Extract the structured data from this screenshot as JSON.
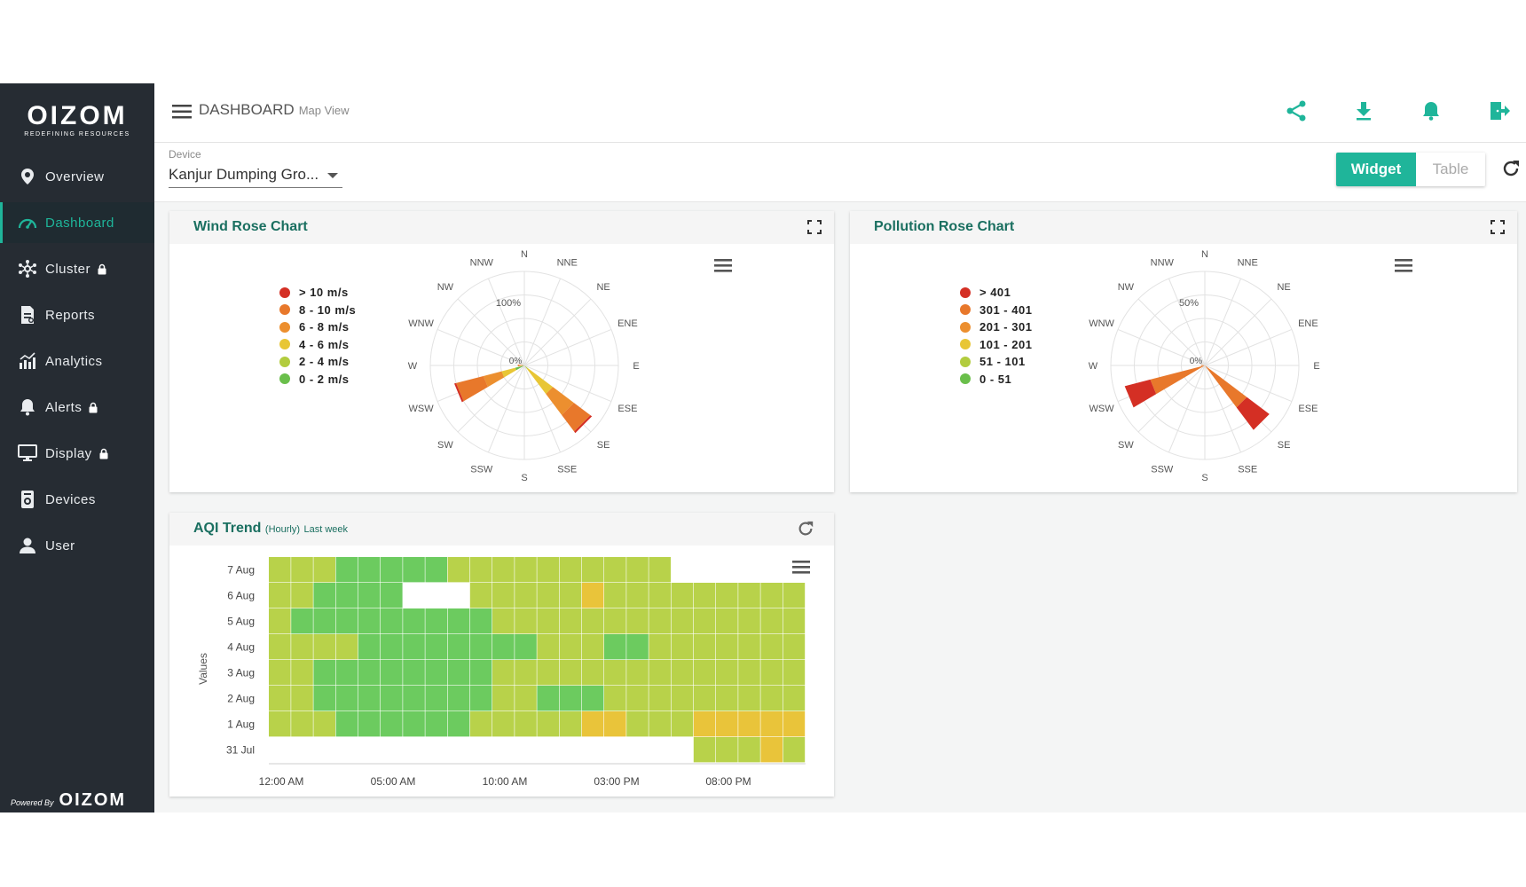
{
  "brand": {
    "name": "OIZOM",
    "tagline": "REDEFINING RESOURCES",
    "powered_by": "Powered By",
    "powered_name": "OIZOM"
  },
  "sidebar": {
    "items": [
      {
        "label": "Overview",
        "icon": "map-pin-icon",
        "active": false,
        "locked": false
      },
      {
        "label": "Dashboard",
        "icon": "speedometer-icon",
        "active": true,
        "locked": false
      },
      {
        "label": "Cluster",
        "icon": "cluster-icon",
        "active": false,
        "locked": true
      },
      {
        "label": "Reports",
        "icon": "report-icon",
        "active": false,
        "locked": false
      },
      {
        "label": "Analytics",
        "icon": "analytics-icon",
        "active": false,
        "locked": false
      },
      {
        "label": "Alerts",
        "icon": "bell-icon",
        "active": false,
        "locked": true
      },
      {
        "label": "Display",
        "icon": "monitor-icon",
        "active": false,
        "locked": true
      },
      {
        "label": "Devices",
        "icon": "device-icon",
        "active": false,
        "locked": false
      },
      {
        "label": "User",
        "icon": "user-icon",
        "active": false,
        "locked": false
      }
    ]
  },
  "header": {
    "title": "DASHBOARD",
    "subtitle": "Map View",
    "icons": [
      "share-icon",
      "download-icon",
      "bell-icon",
      "logout-icon"
    ]
  },
  "device": {
    "label": "Device",
    "value": "Kanjur Dumping Gro..."
  },
  "view_toggle": {
    "active": "Widget",
    "inactive": "Table"
  },
  "colors": {
    "accent": "#1fb59a",
    "sidebar": "#262c33",
    "title": "#1a6f60"
  },
  "wind_rose": {
    "title": "Wind Rose Chart",
    "directions": [
      "N",
      "NNE",
      "NE",
      "ENE",
      "E",
      "ESE",
      "SE",
      "SSE",
      "S",
      "SSW",
      "SW",
      "WSW",
      "W",
      "WNW",
      "NW",
      "NNW"
    ],
    "radial_labels": [
      "100%",
      "0%"
    ],
    "legend": [
      {
        "label": "> 10 m/s",
        "color": "#d42f24"
      },
      {
        "label": "8 - 10 m/s",
        "color": "#e8782b"
      },
      {
        "label": "6 - 8 m/s",
        "color": "#ec8f2f"
      },
      {
        "label": "4 - 6 m/s",
        "color": "#e8c635"
      },
      {
        "label": "2 - 4 m/s",
        "color": "#b2cc3e"
      },
      {
        "label": "0 - 2 m/s",
        "color": "#6abf4b"
      }
    ],
    "sectors": [
      {
        "direction": "WSW",
        "segments": [
          0.02,
          0.3,
          0.2,
          0.15,
          0.0,
          0.1
        ]
      },
      {
        "direction": "SE",
        "segments": [
          0.02,
          0.22,
          0.28,
          0.33,
          0.05,
          0.0
        ]
      },
      {
        "direction": "W",
        "segments": [
          0.0,
          0.02,
          0.04,
          0.01,
          0.0,
          0.0
        ]
      }
    ]
  },
  "pollution_rose": {
    "title": "Pollution Rose Chart",
    "directions": [
      "N",
      "NNE",
      "NE",
      "ENE",
      "E",
      "ESE",
      "SE",
      "SSE",
      "S",
      "SSW",
      "SW",
      "WSW",
      "W",
      "WNW",
      "NW",
      "NNW"
    ],
    "radial_labels": [
      "50%",
      "0%"
    ],
    "legend": [
      {
        "label": "> 401",
        "color": "#d42f24"
      },
      {
        "label": "301 - 401",
        "color": "#e8782b"
      },
      {
        "label": "201 - 301",
        "color": "#ec8f2f"
      },
      {
        "label": "101 - 201",
        "color": "#e8c635"
      },
      {
        "label": "51 - 101",
        "color": "#b2cc3e"
      },
      {
        "label": "0 - 51",
        "color": "#6abf4b"
      }
    ],
    "sectors": [
      {
        "direction": "WSW",
        "segments": [
          0.28,
          0.6,
          0.0,
          0.0,
          0.0,
          0.0
        ]
      },
      {
        "direction": "SE",
        "segments": [
          0.3,
          0.56,
          0.0,
          0.0,
          0.0,
          0.0
        ]
      },
      {
        "direction": "W",
        "segments": [
          0.0,
          0.02,
          0.02,
          0.0,
          0.0,
          0.0
        ]
      }
    ]
  },
  "chart_data": {
    "type": "heatmap",
    "title": "AQI Trend",
    "subtitle": "(Hourly)",
    "period": "Last week",
    "ylabel": "Values",
    "y_categories": [
      "7 Aug",
      "6 Aug",
      "5 Aug",
      "4 Aug",
      "3 Aug",
      "2 Aug",
      "1 Aug",
      "31 Jul"
    ],
    "x_tick_labels": [
      "12:00 AM",
      "05:00 AM",
      "10:00 AM",
      "03:00 PM",
      "08:00 PM"
    ],
    "legend_codes": {
      "G": "#6ccb5f",
      "Y": "#b8d24a",
      "O": "#e9c43a",
      "": "missing"
    },
    "rows": [
      [
        "Y",
        "Y",
        "Y",
        "G",
        "G",
        "G",
        "G",
        "G",
        "Y",
        "Y",
        "Y",
        "Y",
        "Y",
        "Y",
        "Y",
        "Y",
        "Y",
        "Y",
        "",
        "",
        "",
        "",
        "",
        ""
      ],
      [
        "Y",
        "Y",
        "G",
        "G",
        "G",
        "G",
        "",
        "",
        "",
        "Y",
        "Y",
        "Y",
        "Y",
        "Y",
        "O",
        "Y",
        "Y",
        "Y",
        "Y",
        "Y",
        "Y",
        "Y",
        "Y",
        "Y"
      ],
      [
        "Y",
        "G",
        "G",
        "G",
        "G",
        "G",
        "G",
        "G",
        "G",
        "G",
        "Y",
        "Y",
        "Y",
        "Y",
        "Y",
        "Y",
        "Y",
        "Y",
        "Y",
        "Y",
        "Y",
        "Y",
        "Y",
        "Y"
      ],
      [
        "Y",
        "Y",
        "Y",
        "Y",
        "G",
        "G",
        "G",
        "G",
        "G",
        "G",
        "G",
        "G",
        "Y",
        "Y",
        "Y",
        "G",
        "G",
        "Y",
        "Y",
        "Y",
        "Y",
        "Y",
        "Y",
        "Y"
      ],
      [
        "Y",
        "Y",
        "G",
        "G",
        "G",
        "G",
        "G",
        "G",
        "G",
        "G",
        "Y",
        "Y",
        "Y",
        "Y",
        "Y",
        "Y",
        "Y",
        "Y",
        "Y",
        "Y",
        "Y",
        "Y",
        "Y",
        "Y"
      ],
      [
        "Y",
        "Y",
        "G",
        "G",
        "G",
        "G",
        "G",
        "G",
        "G",
        "G",
        "Y",
        "Y",
        "G",
        "G",
        "G",
        "Y",
        "Y",
        "Y",
        "Y",
        "Y",
        "Y",
        "Y",
        "Y",
        "Y"
      ],
      [
        "Y",
        "Y",
        "Y",
        "G",
        "G",
        "G",
        "G",
        "G",
        "G",
        "Y",
        "Y",
        "Y",
        "Y",
        "Y",
        "O",
        "O",
        "Y",
        "Y",
        "Y",
        "O",
        "O",
        "O",
        "O",
        "O"
      ],
      [
        "",
        "",
        "",
        "",
        "",
        "",
        "",
        "",
        "",
        "",
        "",
        "",
        "",
        "",
        "",
        "",
        "",
        "",
        "",
        "Y",
        "Y",
        "Y",
        "O",
        "Y"
      ]
    ]
  }
}
